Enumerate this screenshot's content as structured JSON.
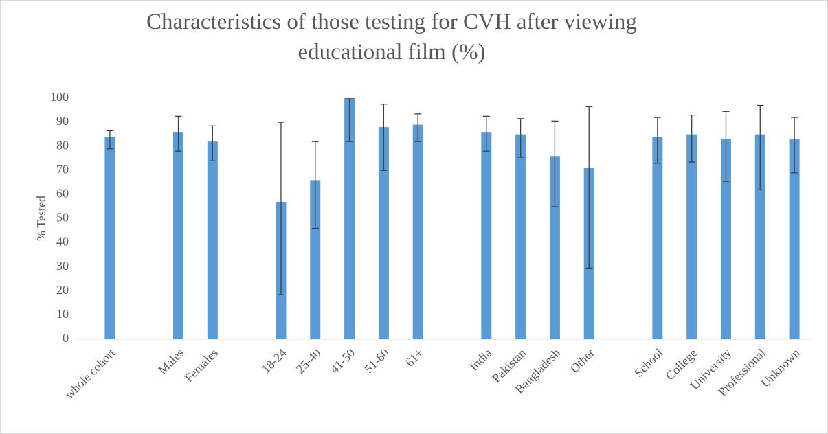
{
  "chart_data": {
    "type": "bar",
    "title": "Characteristics of those testing for CVH after viewing educational film (%)",
    "y_label": "% Tested",
    "categories": [
      "whole cohort",
      null,
      "Males",
      "Females",
      null,
      "18-24",
      "25-40",
      "41-50",
      "51-60",
      "61+",
      null,
      "India",
      "Pakistan",
      "Bangladesh",
      "Other",
      null,
      "School",
      "College",
      "University",
      "Professional",
      "Unknown"
    ],
    "values": [
      84,
      null,
      86,
      82,
      null,
      57,
      66,
      100,
      88,
      89,
      null,
      86,
      85,
      76,
      71,
      null,
      84,
      85,
      83,
      85,
      83
    ],
    "lower": [
      79,
      null,
      78,
      74,
      null,
      18.5,
      46,
      82,
      70,
      82,
      null,
      78,
      75.5,
      55,
      29.5,
      null,
      73,
      73.5,
      65.5,
      62,
      69
    ],
    "upper": [
      86.5,
      null,
      92.5,
      88.5,
      null,
      90,
      82,
      100,
      97.5,
      93.5,
      null,
      92.5,
      91.5,
      90.5,
      96.5,
      null,
      92,
      93,
      94.5,
      97,
      92
    ],
    "color": "#5b9bd5",
    "ylim": [
      0,
      100
    ],
    "yticks": [
      0,
      10,
      20,
      30,
      40,
      50,
      60,
      70,
      80,
      90,
      100
    ],
    "grid": false
  }
}
